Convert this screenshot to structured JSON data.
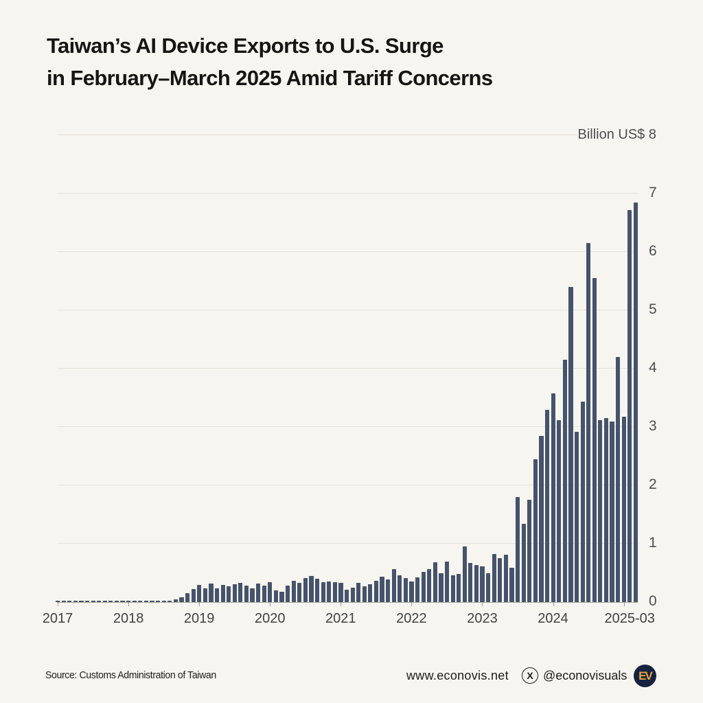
{
  "title": {
    "line1": "Taiwan’s AI Device Exports to U.S. Surge",
    "line2": "in February–March 2025 Amid Tariff Concerns"
  },
  "chart_data": {
    "type": "bar",
    "title": "Taiwan’s AI Device Exports to U.S. Surge in February–March 2025 Amid Tariff Concerns",
    "unit_top_label": "Billion US$ 8",
    "ylabel": "Billion US$",
    "ylim": [
      0,
      8
    ],
    "y_ticks": [
      0,
      1,
      2,
      3,
      4,
      5,
      6,
      7,
      8
    ],
    "grid": true,
    "legend_position": "none",
    "bar_color": "#45536c",
    "x_year_labels": [
      "2017",
      "2018",
      "2019",
      "2020",
      "2021",
      "2022",
      "2023",
      "2024",
      "2025-03"
    ],
    "x": [
      "2017-01",
      "2017-02",
      "2017-03",
      "2017-04",
      "2017-05",
      "2017-06",
      "2017-07",
      "2017-08",
      "2017-09",
      "2017-10",
      "2017-11",
      "2017-12",
      "2018-01",
      "2018-02",
      "2018-03",
      "2018-04",
      "2018-05",
      "2018-06",
      "2018-07",
      "2018-08",
      "2018-09",
      "2018-10",
      "2018-11",
      "2018-12",
      "2019-01",
      "2019-02",
      "2019-03",
      "2019-04",
      "2019-05",
      "2019-06",
      "2019-07",
      "2019-08",
      "2019-09",
      "2019-10",
      "2019-11",
      "2019-12",
      "2020-01",
      "2020-02",
      "2020-03",
      "2020-04",
      "2020-05",
      "2020-06",
      "2020-07",
      "2020-08",
      "2020-09",
      "2020-10",
      "2020-11",
      "2020-12",
      "2021-01",
      "2021-02",
      "2021-03",
      "2021-04",
      "2021-05",
      "2021-06",
      "2021-07",
      "2021-08",
      "2021-09",
      "2021-10",
      "2021-11",
      "2021-12",
      "2022-01",
      "2022-02",
      "2022-03",
      "2022-04",
      "2022-05",
      "2022-06",
      "2022-07",
      "2022-08",
      "2022-09",
      "2022-10",
      "2022-11",
      "2022-12",
      "2023-01",
      "2023-02",
      "2023-03",
      "2023-04",
      "2023-05",
      "2023-06",
      "2023-07",
      "2023-08",
      "2023-09",
      "2023-10",
      "2023-11",
      "2023-12",
      "2024-01",
      "2024-02",
      "2024-03",
      "2024-04",
      "2024-05",
      "2024-06",
      "2024-07",
      "2024-08",
      "2024-09",
      "2024-10",
      "2024-11",
      "2024-12",
      "2025-01",
      "2025-02",
      "2025-03"
    ],
    "series": [
      {
        "name": "AI device exports to U.S. (Billion US$)",
        "values": [
          0.02,
          0.02,
          0.02,
          0.02,
          0.02,
          0.02,
          0.02,
          0.02,
          0.02,
          0.02,
          0.02,
          0.02,
          0.02,
          0.02,
          0.02,
          0.02,
          0.02,
          0.02,
          0.02,
          0.02,
          0.05,
          0.08,
          0.15,
          0.22,
          0.3,
          0.24,
          0.32,
          0.23,
          0.29,
          0.27,
          0.31,
          0.33,
          0.28,
          0.23,
          0.32,
          0.28,
          0.34,
          0.2,
          0.18,
          0.28,
          0.37,
          0.33,
          0.41,
          0.45,
          0.4,
          0.34,
          0.35,
          0.34,
          0.33,
          0.21,
          0.25,
          0.33,
          0.27,
          0.31,
          0.37,
          0.44,
          0.39,
          0.56,
          0.46,
          0.41,
          0.35,
          0.42,
          0.52,
          0.56,
          0.68,
          0.5,
          0.7,
          0.46,
          0.48,
          0.95,
          0.67,
          0.64,
          0.61,
          0.5,
          0.82,
          0.75,
          0.81,
          0.59,
          1.8,
          1.34,
          1.75,
          2.45,
          2.85,
          3.3,
          3.58,
          3.12,
          4.15,
          5.4,
          2.92,
          3.44,
          6.15,
          5.55,
          3.12,
          3.15,
          3.09,
          4.2,
          3.18,
          6.72,
          6.85
        ]
      }
    ]
  },
  "footer": {
    "source": "Source: Customs Administration of Taiwan",
    "website": "www.econovis.net",
    "x_icon": "X",
    "handle": "@econovisuals",
    "logo_text": "EV"
  },
  "colors": {
    "background": "#f7f5ef",
    "bar": "#45536c",
    "gridline": "#e4e1d8",
    "title_text": "#161513",
    "tick_text": "#4c4e52",
    "logo_bg": "#16233f",
    "logo_text": "#e9a43c"
  }
}
